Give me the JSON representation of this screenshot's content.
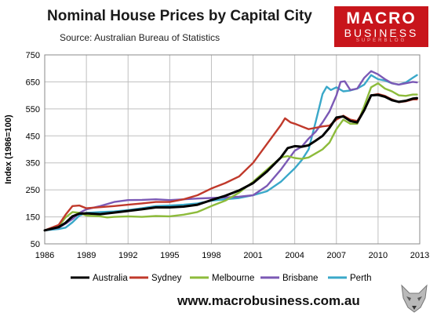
{
  "header": {
    "title": "Nominal House Prices by Capital City",
    "source": "Source: Australian Bureau of Statistics"
  },
  "logo": {
    "line1": "MACRO",
    "line2": "BUSINESS",
    "line3": "SUPERBLOG",
    "color": "#c8151b"
  },
  "footer": {
    "url": "www.macrobusiness.com.au"
  },
  "chart_data": {
    "type": "line",
    "title": "Nominal House Prices by Capital City",
    "ylabel": "Index (1986=100)",
    "xlabel": "",
    "xlim": [
      1986,
      2013
    ],
    "ylim": [
      50,
      750
    ],
    "xticks": [
      1986,
      1989,
      1992,
      1995,
      1998,
      2001,
      2004,
      2007,
      2010,
      2013
    ],
    "yticks": [
      50,
      150,
      250,
      350,
      450,
      550,
      650,
      750
    ],
    "grid": true,
    "legend_position": "bottom",
    "series": [
      {
        "name": "Australia",
        "color": "#000000",
        "points": [
          [
            1986,
            100
          ],
          [
            1987,
            112
          ],
          [
            1987.5,
            128
          ],
          [
            1988,
            152
          ],
          [
            1988.5,
            162
          ],
          [
            1989,
            163
          ],
          [
            1990,
            160
          ],
          [
            1991,
            166
          ],
          [
            1992,
            172
          ],
          [
            1993,
            178
          ],
          [
            1994,
            185
          ],
          [
            1995,
            185
          ],
          [
            1996,
            188
          ],
          [
            1997,
            195
          ],
          [
            1998,
            212
          ],
          [
            1999,
            228
          ],
          [
            2000,
            248
          ],
          [
            2001,
            275
          ],
          [
            2002,
            318
          ],
          [
            2003,
            370
          ],
          [
            2003.5,
            405
          ],
          [
            2004,
            412
          ],
          [
            2004.5,
            410
          ],
          [
            2005,
            415
          ],
          [
            2005.5,
            432
          ],
          [
            2006,
            450
          ],
          [
            2006.5,
            480
          ],
          [
            2007,
            518
          ],
          [
            2007.5,
            522
          ],
          [
            2008,
            505
          ],
          [
            2008.5,
            500
          ],
          [
            2009,
            545
          ],
          [
            2009.5,
            600
          ],
          [
            2010,
            602
          ],
          [
            2010.5,
            595
          ],
          [
            2011,
            582
          ],
          [
            2011.5,
            576
          ],
          [
            2012,
            580
          ],
          [
            2012.5,
            588
          ],
          [
            2012.8,
            590
          ]
        ]
      },
      {
        "name": "Sydney",
        "color": "#c0392b",
        "points": [
          [
            1986,
            100
          ],
          [
            1987,
            120
          ],
          [
            1987.5,
            158
          ],
          [
            1988,
            190
          ],
          [
            1988.5,
            192
          ],
          [
            1989,
            182
          ],
          [
            1990,
            186
          ],
          [
            1991,
            190
          ],
          [
            1992,
            195
          ],
          [
            1993,
            200
          ],
          [
            1994,
            205
          ],
          [
            1995,
            205
          ],
          [
            1996,
            215
          ],
          [
            1997,
            230
          ],
          [
            1998,
            255
          ],
          [
            1999,
            275
          ],
          [
            2000,
            300
          ],
          [
            2001,
            350
          ],
          [
            2002,
            420
          ],
          [
            2003,
            490
          ],
          [
            2003.3,
            515
          ],
          [
            2003.7,
            500
          ],
          [
            2004,
            495
          ],
          [
            2004.5,
            485
          ],
          [
            2005,
            475
          ],
          [
            2005.5,
            480
          ],
          [
            2006,
            485
          ],
          [
            2006.5,
            488
          ],
          [
            2007,
            510
          ],
          [
            2007.5,
            525
          ],
          [
            2008,
            510
          ],
          [
            2008.5,
            505
          ],
          [
            2009,
            545
          ],
          [
            2009.5,
            600
          ],
          [
            2010,
            605
          ],
          [
            2010.5,
            598
          ],
          [
            2011,
            585
          ],
          [
            2011.5,
            575
          ],
          [
            2012,
            578
          ],
          [
            2012.5,
            585
          ],
          [
            2012.8,
            585
          ]
        ]
      },
      {
        "name": "Melbourne",
        "color": "#8dbb3b",
        "points": [
          [
            1986,
            100
          ],
          [
            1987,
            115
          ],
          [
            1987.5,
            148
          ],
          [
            1988,
            168
          ],
          [
            1988.5,
            165
          ],
          [
            1989,
            155
          ],
          [
            1990,
            152
          ],
          [
            1990.5,
            148
          ],
          [
            1991,
            150
          ],
          [
            1992,
            152
          ],
          [
            1993,
            150
          ],
          [
            1994,
            153
          ],
          [
            1995,
            152
          ],
          [
            1996,
            158
          ],
          [
            1997,
            168
          ],
          [
            1998,
            190
          ],
          [
            1999,
            210
          ],
          [
            2000,
            240
          ],
          [
            2001,
            280
          ],
          [
            2002,
            325
          ],
          [
            2003,
            370
          ],
          [
            2003.5,
            375
          ],
          [
            2004,
            368
          ],
          [
            2004.5,
            365
          ],
          [
            2005,
            370
          ],
          [
            2005.5,
            385
          ],
          [
            2006,
            400
          ],
          [
            2006.5,
            425
          ],
          [
            2007,
            475
          ],
          [
            2007.5,
            510
          ],
          [
            2008,
            495
          ],
          [
            2008.5,
            495
          ],
          [
            2009,
            560
          ],
          [
            2009.5,
            630
          ],
          [
            2010,
            645
          ],
          [
            2010.5,
            625
          ],
          [
            2011,
            615
          ],
          [
            2011.5,
            600
          ],
          [
            2012,
            598
          ],
          [
            2012.5,
            603
          ],
          [
            2012.8,
            603
          ]
        ]
      },
      {
        "name": "Brisbane",
        "color": "#7b59b5",
        "points": [
          [
            1986,
            100
          ],
          [
            1987,
            110
          ],
          [
            1987.5,
            125
          ],
          [
            1988,
            142
          ],
          [
            1988.5,
            165
          ],
          [
            1989,
            178
          ],
          [
            1990,
            190
          ],
          [
            1991,
            205
          ],
          [
            1992,
            212
          ],
          [
            1993,
            213
          ],
          [
            1994,
            215
          ],
          [
            1995,
            212
          ],
          [
            1996,
            215
          ],
          [
            1997,
            218
          ],
          [
            1998,
            220
          ],
          [
            1999,
            222
          ],
          [
            2000,
            225
          ],
          [
            2001,
            230
          ],
          [
            2002,
            265
          ],
          [
            2003,
            325
          ],
          [
            2003.5,
            360
          ],
          [
            2004,
            395
          ],
          [
            2004.5,
            410
          ],
          [
            2005,
            440
          ],
          [
            2005.5,
            465
          ],
          [
            2006,
            500
          ],
          [
            2006.5,
            540
          ],
          [
            2007,
            600
          ],
          [
            2007.3,
            650
          ],
          [
            2007.6,
            652
          ],
          [
            2008,
            620
          ],
          [
            2008.5,
            625
          ],
          [
            2009,
            665
          ],
          [
            2009.5,
            690
          ],
          [
            2010,
            678
          ],
          [
            2010.5,
            660
          ],
          [
            2011,
            645
          ],
          [
            2011.5,
            640
          ],
          [
            2012,
            645
          ],
          [
            2012.5,
            650
          ],
          [
            2012.8,
            648
          ]
        ]
      },
      {
        "name": "Perth",
        "color": "#3aa8c9",
        "points": [
          [
            1986,
            100
          ],
          [
            1987,
            105
          ],
          [
            1987.5,
            110
          ],
          [
            1988,
            130
          ],
          [
            1988.5,
            155
          ],
          [
            1989,
            165
          ],
          [
            1990,
            168
          ],
          [
            1991,
            170
          ],
          [
            1992,
            175
          ],
          [
            1993,
            182
          ],
          [
            1994,
            190
          ],
          [
            1995,
            192
          ],
          [
            1996,
            195
          ],
          [
            1997,
            200
          ],
          [
            1998,
            210
          ],
          [
            1999,
            215
          ],
          [
            2000,
            220
          ],
          [
            2001,
            230
          ],
          [
            2002,
            245
          ],
          [
            2003,
            280
          ],
          [
            2003.5,
            305
          ],
          [
            2004,
            330
          ],
          [
            2004.5,
            360
          ],
          [
            2005,
            400
          ],
          [
            2005.5,
            500
          ],
          [
            2006,
            605
          ],
          [
            2006.3,
            632
          ],
          [
            2006.6,
            620
          ],
          [
            2007,
            630
          ],
          [
            2007.5,
            615
          ],
          [
            2008,
            618
          ],
          [
            2008.5,
            625
          ],
          [
            2009,
            640
          ],
          [
            2009.5,
            675
          ],
          [
            2010,
            660
          ],
          [
            2010.5,
            655
          ],
          [
            2011,
            645
          ],
          [
            2011.5,
            640
          ],
          [
            2012,
            648
          ],
          [
            2012.5,
            665
          ],
          [
            2012.8,
            675
          ]
        ]
      }
    ]
  }
}
